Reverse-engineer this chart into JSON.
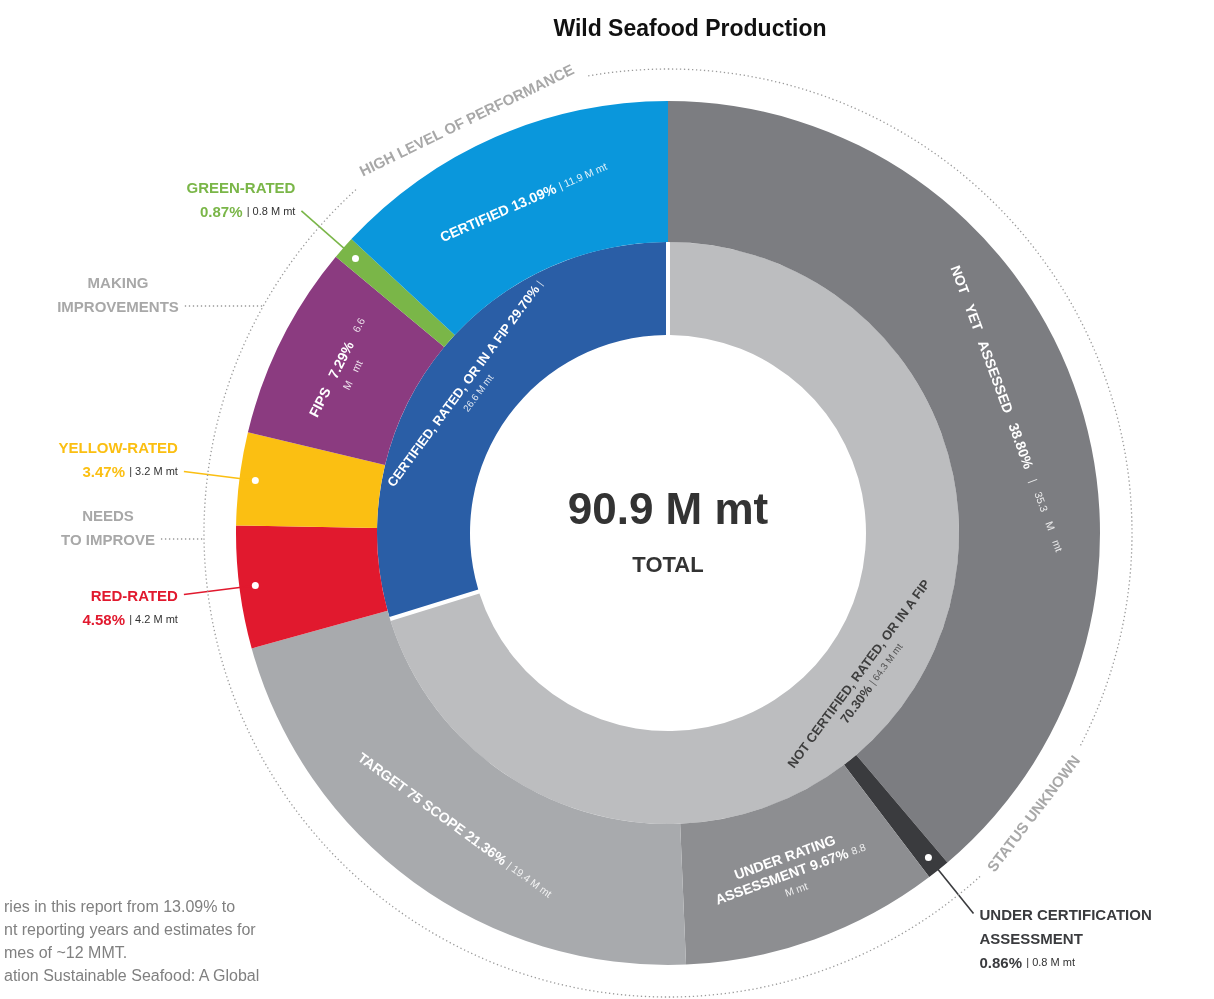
{
  "chart_data": [
    {
      "type": "donut",
      "title": "Wild Seafood Production",
      "categories": [
        "NOT CERTIFIED, RATED, OR IN A FIP",
        "CERTIFIED, RATED, OR IN A FIP"
      ],
      "values": [
        70.3,
        29.7
      ],
      "colors": [
        "#bcbdbf",
        "#2a5ea6"
      ],
      "value_labels": [
        "70.30% | 64.3 M mt",
        "29.70% | 26.6 M mt"
      ],
      "annotations": [
        "90.9 M mt",
        "TOTAL"
      ]
    },
    {
      "type": "donut",
      "categories": [
        "NOT YET ASSESSED",
        "UNDER CERTIFICATION ASSESSMENT",
        "UNDER RATING ASSESSMENT",
        "TARGET 75 SCOPE",
        "RED-RATED",
        "YELLOW-RATED",
        "FIPS",
        "GREEN-RATED",
        "CERTIFIED"
      ],
      "values": [
        38.8,
        0.86,
        9.67,
        21.36,
        4.58,
        3.47,
        7.29,
        0.87,
        13.09
      ],
      "colors": [
        "#7c7d81",
        "#3a3b3e",
        "#8d8e91",
        "#a8aaad",
        "#e1192e",
        "#fbbf12",
        "#8b3b80",
        "#7ab648",
        "#0a97dc"
      ],
      "value_labels": [
        "38.80% | 35.3 M mt",
        "0.86% | 0.8 M mt",
        "9.67% 8.8 M mt",
        "21.36% | 19.4 M mt",
        "4.58% | 4.2 M mt",
        "3.47% | 3.2 M mt",
        "7.29% 6.6 M mt",
        "0.87% | 0.8 M mt",
        "13.09% | 11.9 M mt"
      ],
      "annotations": [
        "HIGH LEVEL OF PERFORMANCE",
        "MAKING IMPROVEMENTS",
        "NEEDS TO IMPROVE",
        "STATUS UNKNOWN",
        "ries in this report from 13.09% to",
        "nt reporting years and estimates for",
        "mes of ~12 MMT.",
        "ation Sustainable Seafood: A Global"
      ]
    }
  ]
}
